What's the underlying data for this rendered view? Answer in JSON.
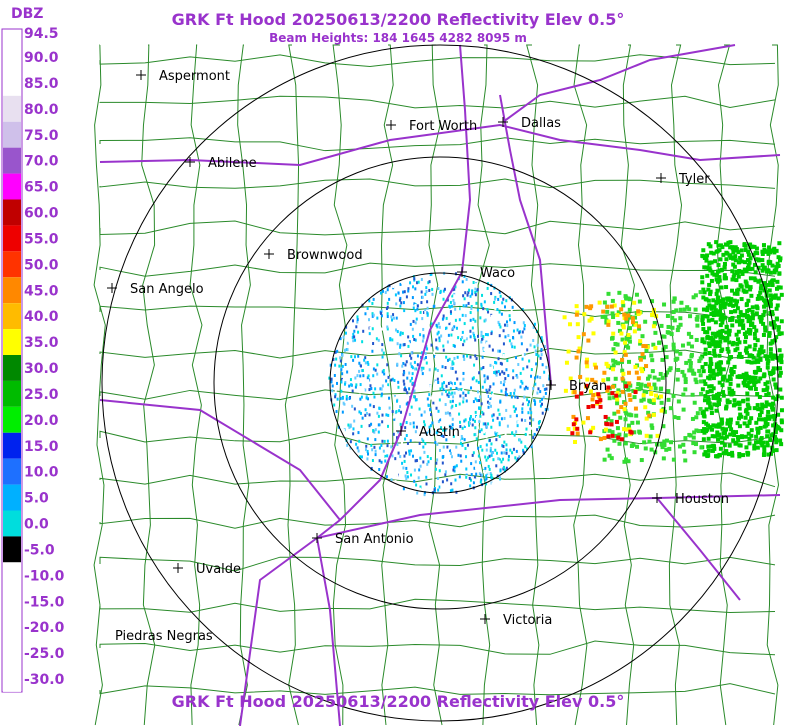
{
  "header": {
    "title": "GRK Ft Hood 20250613/2200 Reflectivity Elev 0.5°",
    "subtitle": "Beam Heights: 184 1645 4282 8095 m"
  },
  "legend": {
    "unit": "DBZ",
    "labels": [
      "94.5",
      "90.0",
      "85.0",
      "80.0",
      "75.0",
      "70.0",
      "65.0",
      "60.0",
      "55.0",
      "50.0",
      "45.0",
      "40.0",
      "35.0",
      "30.0",
      "25.0",
      "20.0",
      "15.0",
      "10.0",
      "5.0",
      "0.0",
      "-5.0",
      "-10.0",
      "-15.0",
      "-20.0",
      "-25.0",
      "-30.0"
    ]
  },
  "cities": [
    {
      "label": "Aspermont"
    },
    {
      "label": "Fort Worth"
    },
    {
      "label": "Dallas"
    },
    {
      "label": "Abilene"
    },
    {
      "label": "Tyler"
    },
    {
      "label": "Brownwood"
    },
    {
      "label": "Waco"
    },
    {
      "label": "San Angelo"
    },
    {
      "label": "Bryan"
    },
    {
      "label": "Austin"
    },
    {
      "label": "Houston"
    },
    {
      "label": "San Antonio"
    },
    {
      "label": "Uvalde"
    },
    {
      "label": "Piedras Negras"
    },
    {
      "label": "Victoria"
    }
  ],
  "footer": {
    "title": "GRK Ft Hood 20250613/2200 Reflectivity Elev 0.5°"
  }
}
